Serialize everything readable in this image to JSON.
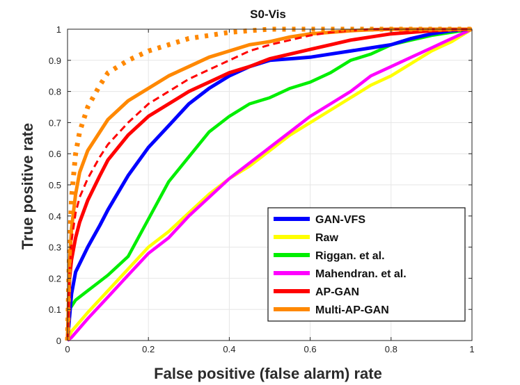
{
  "chart_data": {
    "type": "line",
    "title": "S0-Vis",
    "xlabel": "False positive (false alarm) rate",
    "ylabel": "True positive  rate",
    "xlim": [
      0,
      1
    ],
    "ylim": [
      0,
      1
    ],
    "grid": true,
    "legend_position": "bottom-right",
    "x_ticks": [
      {
        "value": 0,
        "label": "0"
      },
      {
        "value": 0.2,
        "label": "0.2"
      },
      {
        "value": 0.4,
        "label": "0.4"
      },
      {
        "value": 0.6,
        "label": "0.6"
      },
      {
        "value": 0.8,
        "label": "0.8"
      },
      {
        "value": 1,
        "label": "1"
      }
    ],
    "y_ticks": [
      {
        "value": 0,
        "label": "0"
      },
      {
        "value": 0.1,
        "label": "0.1"
      },
      {
        "value": 0.2,
        "label": "0.2"
      },
      {
        "value": 0.3,
        "label": "0.3"
      },
      {
        "value": 0.4,
        "label": "0.4"
      },
      {
        "value": 0.5,
        "label": "0.5"
      },
      {
        "value": 0.6,
        "label": "0.6"
      },
      {
        "value": 0.7,
        "label": "0.7"
      },
      {
        "value": 0.8,
        "label": "0.8"
      },
      {
        "value": 0.9,
        "label": "0.9"
      },
      {
        "value": 1,
        "label": "1"
      }
    ],
    "series": [
      {
        "name": "Riggan. et al.",
        "color": "#00ee00",
        "style": "solid",
        "in_legend": true,
        "x": [
          0,
          0.005,
          0.02,
          0.05,
          0.08,
          0.1,
          0.15,
          0.2,
          0.25,
          0.3,
          0.35,
          0.4,
          0.45,
          0.5,
          0.55,
          0.6,
          0.65,
          0.7,
          0.75,
          0.8,
          0.85,
          0.9,
          0.95,
          1
        ],
        "y": [
          0,
          0.1,
          0.13,
          0.16,
          0.19,
          0.21,
          0.27,
          0.39,
          0.51,
          0.59,
          0.67,
          0.72,
          0.76,
          0.78,
          0.81,
          0.83,
          0.86,
          0.9,
          0.92,
          0.95,
          0.965,
          0.98,
          0.99,
          1
        ]
      },
      {
        "name": "Raw",
        "color": "#ffff00",
        "style": "solid",
        "in_legend": true,
        "x": [
          0,
          0.01,
          0.05,
          0.1,
          0.15,
          0.2,
          0.25,
          0.3,
          0.35,
          0.4,
          0.45,
          0.5,
          0.55,
          0.6,
          0.65,
          0.7,
          0.75,
          0.8,
          0.85,
          0.9,
          0.95,
          1
        ],
        "y": [
          0,
          0.03,
          0.09,
          0.16,
          0.23,
          0.3,
          0.35,
          0.41,
          0.47,
          0.52,
          0.56,
          0.61,
          0.66,
          0.7,
          0.74,
          0.78,
          0.82,
          0.85,
          0.89,
          0.93,
          0.96,
          1
        ]
      },
      {
        "name": "Mahendran. et al.",
        "color": "#ff00ff",
        "style": "solid",
        "in_legend": true,
        "x": [
          0,
          0.01,
          0.05,
          0.1,
          0.15,
          0.2,
          0.25,
          0.3,
          0.35,
          0.4,
          0.45,
          0.5,
          0.55,
          0.6,
          0.65,
          0.7,
          0.75,
          0.8,
          0.85,
          0.9,
          0.95,
          1
        ],
        "y": [
          0,
          0.01,
          0.07,
          0.14,
          0.21,
          0.28,
          0.33,
          0.4,
          0.46,
          0.52,
          0.57,
          0.62,
          0.67,
          0.72,
          0.76,
          0.8,
          0.85,
          0.88,
          0.91,
          0.94,
          0.97,
          1
        ]
      },
      {
        "name": "GAN-VFS",
        "color": "#0000ff",
        "style": "solid",
        "in_legend": true,
        "x": [
          0,
          0.01,
          0.02,
          0.05,
          0.08,
          0.1,
          0.15,
          0.2,
          0.25,
          0.3,
          0.35,
          0.4,
          0.45,
          0.5,
          0.55,
          0.6,
          0.65,
          0.7,
          0.75,
          0.8,
          0.85,
          0.9,
          0.95,
          1
        ],
        "y": [
          0,
          0.15,
          0.22,
          0.3,
          0.37,
          0.42,
          0.53,
          0.62,
          0.69,
          0.76,
          0.81,
          0.85,
          0.88,
          0.9,
          0.905,
          0.91,
          0.92,
          0.93,
          0.94,
          0.95,
          0.97,
          0.985,
          0.995,
          1
        ]
      },
      {
        "name": "AP-GAN",
        "color": "#ff0000",
        "style": "solid",
        "in_legend": true,
        "x": [
          0,
          0.005,
          0.01,
          0.02,
          0.03,
          0.05,
          0.08,
          0.1,
          0.15,
          0.2,
          0.25,
          0.3,
          0.35,
          0.4,
          0.45,
          0.5,
          0.55,
          0.6,
          0.65,
          0.7,
          0.75,
          0.8,
          0.85,
          0.9,
          0.95,
          1
        ],
        "y": [
          0,
          0.2,
          0.26,
          0.33,
          0.38,
          0.45,
          0.53,
          0.58,
          0.66,
          0.72,
          0.76,
          0.8,
          0.83,
          0.86,
          0.88,
          0.905,
          0.92,
          0.935,
          0.95,
          0.965,
          0.975,
          0.985,
          0.99,
          0.995,
          0.998,
          1
        ]
      },
      {
        "name": "Multi-AP-GAN",
        "color": "#ff8800",
        "style": "solid",
        "in_legend": true,
        "x": [
          0,
          0.005,
          0.01,
          0.02,
          0.03,
          0.05,
          0.08,
          0.1,
          0.15,
          0.2,
          0.25,
          0.3,
          0.35,
          0.4,
          0.45,
          0.5,
          0.55,
          0.6,
          0.65,
          0.7,
          0.75,
          0.8,
          0.85,
          0.9,
          0.95,
          1
        ],
        "y": [
          0,
          0.25,
          0.36,
          0.47,
          0.54,
          0.61,
          0.67,
          0.71,
          0.77,
          0.81,
          0.85,
          0.88,
          0.91,
          0.93,
          0.95,
          0.96,
          0.975,
          0.985,
          0.99,
          0.995,
          0.998,
          1,
          1,
          1,
          1,
          1
        ]
      },
      {
        "name": "dashed (unlabeled)",
        "color": "#ff0000",
        "style": "dashed",
        "in_legend": false,
        "x": [
          0,
          0.005,
          0.01,
          0.02,
          0.03,
          0.05,
          0.08,
          0.1,
          0.15,
          0.2,
          0.25,
          0.3,
          0.35,
          0.4,
          0.45,
          0.5,
          0.55,
          0.6,
          0.65,
          0.7,
          0.75,
          0.8,
          0.85,
          0.9,
          0.95,
          1
        ],
        "y": [
          0,
          0.22,
          0.32,
          0.41,
          0.46,
          0.52,
          0.59,
          0.63,
          0.7,
          0.76,
          0.8,
          0.84,
          0.87,
          0.9,
          0.93,
          0.95,
          0.965,
          0.98,
          0.99,
          0.995,
          1,
          1,
          1,
          1,
          1,
          1
        ]
      },
      {
        "name": "dotted (unlabeled)",
        "color": "#ff8800",
        "style": "dotted",
        "in_legend": false,
        "x": [
          0,
          0.005,
          0.01,
          0.02,
          0.03,
          0.05,
          0.08,
          0.1,
          0.15,
          0.2,
          0.25,
          0.3,
          0.35,
          0.4,
          0.45,
          0.5,
          0.55,
          0.6,
          0.65,
          0.7,
          0.75,
          0.8,
          0.85,
          0.9,
          0.95,
          1
        ],
        "y": [
          0,
          0.3,
          0.46,
          0.6,
          0.67,
          0.75,
          0.82,
          0.86,
          0.9,
          0.93,
          0.95,
          0.97,
          0.98,
          0.99,
          0.995,
          1,
          1,
          1,
          1,
          1,
          1,
          1,
          1,
          1,
          1,
          1
        ]
      }
    ],
    "legend_order": [
      "GAN-VFS",
      "Raw",
      "Riggan. et al.",
      "Mahendran. et al.",
      "AP-GAN",
      "Multi-AP-GAN"
    ]
  }
}
